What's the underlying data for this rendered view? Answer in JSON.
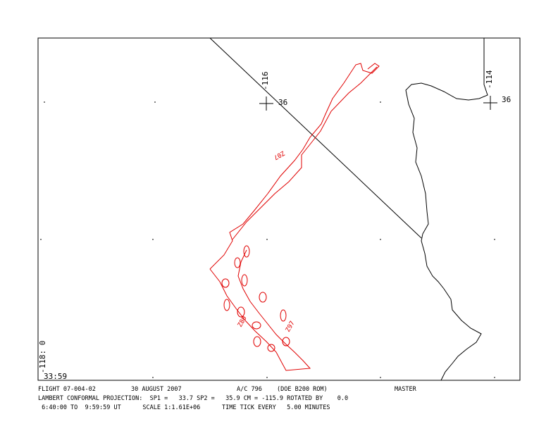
{
  "map": {
    "grid_labels": [
      "-116",
      "36",
      "-114",
      "36",
      "-118: 0",
      "33:59"
    ],
    "track_labels": [
      "Z07",
      "Z80",
      "Z97"
    ]
  },
  "footer": {
    "line1": [
      "FLIGHT 07-004-02",
      "30 AUGUST 2007",
      "A/C 796",
      "(DOE B200 ROM)",
      "MASTER"
    ],
    "line2": "LAMBERT CONFORMAL PROJECTION:  SP1 =   33.7 SP2 =   35.9 CM = -115.9 ROTATED BY    0.0",
    "line3": " 6:40:00 TO  9:59:59 UT      SCALE 1:1.61E+06      TIME TICK EVERY   5.00 MINUTES"
  }
}
